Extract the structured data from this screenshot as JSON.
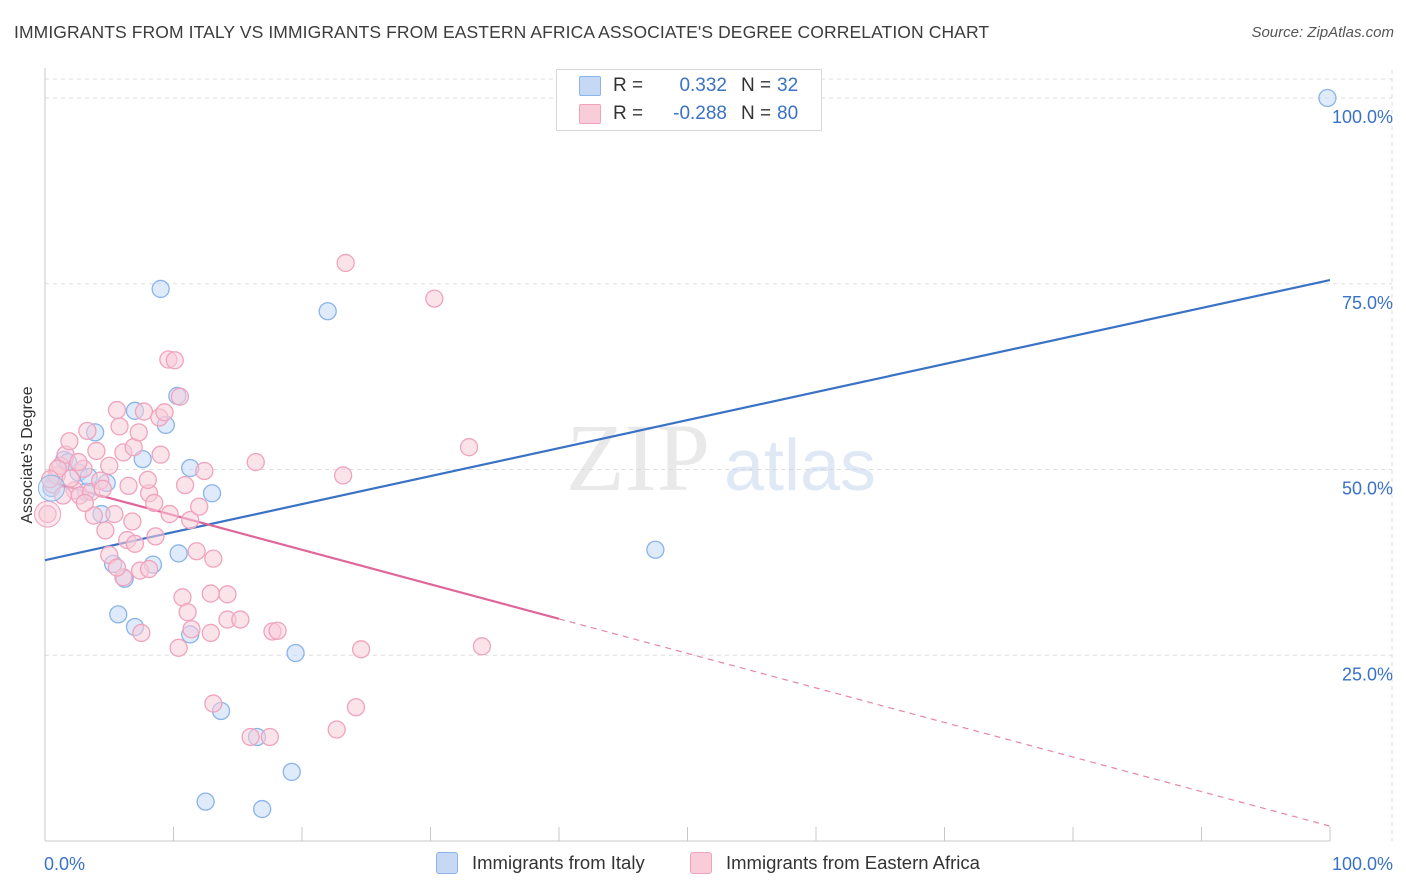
{
  "chart_data": {
    "type": "scatter",
    "title": "IMMIGRANTS FROM ITALY VS IMMIGRANTS FROM EASTERN AFRICA ASSOCIATE'S DEGREE CORRELATION CHART",
    "source": "Source: ZipAtlas.com",
    "ylabel": "Associate's Degree",
    "xlabel": "",
    "xlim": [
      0,
      100
    ],
    "ylim": [
      0,
      100
    ],
    "x_ticks": [
      {
        "value": 0,
        "label": "0.0%"
      },
      {
        "value": 100,
        "label": "100.0%"
      }
    ],
    "y_ticks": [
      {
        "value": 25,
        "label": "25.0%"
      },
      {
        "value": 50,
        "label": "50.0%"
      },
      {
        "value": 75,
        "label": "75.0%"
      },
      {
        "value": 100,
        "label": "100.0%"
      }
    ],
    "grid": true,
    "watermark": {
      "zip": "ZIP",
      "atlas": "atlas"
    },
    "legend_placement": "top-center",
    "series": [
      {
        "name": "Immigrants from Italy",
        "color": "#8ab4ea",
        "fill": "#c5d9f5",
        "line_color": "#3a72c6",
        "r_label": "R =",
        "r_value": "0.332",
        "n_label": "N =",
        "n_value": "32",
        "trend": {
          "x0": 0,
          "y0": 37.8,
          "x1": 100,
          "y1": 75.5,
          "dashed_from": null
        },
        "points": [
          [
            3.9,
            55.0
          ],
          [
            1.5,
            51.3
          ],
          [
            2.6,
            49.6
          ],
          [
            4.8,
            48.2
          ],
          [
            3.2,
            47.0
          ],
          [
            0.5,
            47.5
          ],
          [
            4.4,
            44.0
          ],
          [
            7.0,
            57.9
          ],
          [
            9.4,
            56.0
          ],
          [
            10.3,
            59.9
          ],
          [
            7.6,
            51.4
          ],
          [
            11.3,
            50.2
          ],
          [
            13.0,
            46.8
          ],
          [
            9.0,
            74.3
          ],
          [
            22.0,
            71.3
          ],
          [
            99.8,
            100.0
          ],
          [
            47.5,
            39.2
          ],
          [
            10.4,
            38.7
          ],
          [
            5.3,
            37.3
          ],
          [
            8.4,
            37.2
          ],
          [
            6.2,
            35.3
          ],
          [
            5.7,
            30.5
          ],
          [
            7.0,
            28.8
          ],
          [
            11.3,
            27.8
          ],
          [
            19.5,
            25.3
          ],
          [
            13.7,
            17.5
          ],
          [
            16.5,
            14.0
          ],
          [
            19.2,
            9.3
          ],
          [
            12.5,
            5.3
          ],
          [
            16.9,
            4.3
          ],
          [
            1.8,
            51.0
          ],
          [
            3.4,
            49.0
          ]
        ]
      },
      {
        "name": "Immigrants from Eastern Africa",
        "color": "#f0a3bd",
        "fill": "#f8ccd9",
        "line_color": "#e0669a",
        "r_label": "R =",
        "r_value": "-0.288",
        "n_label": "N =",
        "n_value": "80",
        "trend": {
          "x0": 0,
          "y0": 48.5,
          "x1": 100,
          "y1": 2.0,
          "dashed_from": 40
        },
        "points": [
          [
            0.2,
            44.0
          ],
          [
            0.6,
            48.0
          ],
          [
            0.9,
            49.2
          ],
          [
            1.2,
            50.5
          ],
          [
            1.6,
            52.0
          ],
          [
            1.9,
            53.8
          ],
          [
            2.3,
            47.2
          ],
          [
            2.7,
            46.5
          ],
          [
            3.0,
            50.1
          ],
          [
            3.3,
            55.2
          ],
          [
            3.6,
            47.0
          ],
          [
            4.0,
            52.5
          ],
          [
            4.3,
            48.5
          ],
          [
            4.7,
            41.8
          ],
          [
            5.0,
            50.5
          ],
          [
            5.4,
            44.0
          ],
          [
            5.8,
            55.8
          ],
          [
            6.1,
            52.3
          ],
          [
            6.5,
            47.8
          ],
          [
            6.9,
            53.0
          ],
          [
            7.3,
            55.0
          ],
          [
            7.7,
            57.8
          ],
          [
            8.1,
            46.8
          ],
          [
            8.5,
            45.5
          ],
          [
            8.9,
            57.0
          ],
          [
            9.3,
            57.7
          ],
          [
            9.6,
            64.8
          ],
          [
            10.1,
            64.7
          ],
          [
            10.5,
            59.8
          ],
          [
            10.9,
            47.9
          ],
          [
            11.3,
            43.2
          ],
          [
            8.0,
            48.6
          ],
          [
            5.6,
            58.0
          ],
          [
            12.4,
            49.8
          ],
          [
            16.4,
            51.0
          ],
          [
            23.2,
            49.2
          ],
          [
            23.4,
            77.8
          ],
          [
            30.3,
            73.0
          ],
          [
            33.0,
            53.0
          ],
          [
            5.0,
            38.5
          ],
          [
            6.1,
            35.5
          ],
          [
            7.4,
            36.4
          ],
          [
            5.6,
            36.8
          ],
          [
            8.1,
            36.6
          ],
          [
            10.7,
            32.8
          ],
          [
            11.1,
            30.8
          ],
          [
            13.1,
            38.0
          ],
          [
            12.9,
            33.3
          ],
          [
            14.2,
            33.2
          ],
          [
            14.2,
            29.8
          ],
          [
            12.9,
            28.0
          ],
          [
            15.2,
            29.8
          ],
          [
            17.7,
            28.2
          ],
          [
            18.1,
            28.3
          ],
          [
            7.5,
            28.0
          ],
          [
            10.4,
            26.0
          ],
          [
            11.4,
            28.5
          ],
          [
            24.6,
            25.8
          ],
          [
            34.0,
            26.2
          ],
          [
            13.1,
            18.5
          ],
          [
            24.2,
            18.0
          ],
          [
            22.7,
            15.0
          ],
          [
            17.5,
            14.0
          ],
          [
            16.0,
            14.0
          ],
          [
            2.0,
            48.8
          ],
          [
            3.8,
            43.8
          ],
          [
            6.4,
            40.5
          ],
          [
            1.0,
            50.1
          ],
          [
            0.4,
            48.7
          ],
          [
            9.0,
            52.0
          ],
          [
            2.6,
            51.0
          ],
          [
            4.5,
            47.4
          ],
          [
            7.0,
            40.0
          ],
          [
            1.4,
            46.5
          ],
          [
            3.1,
            45.5
          ],
          [
            6.8,
            43.0
          ],
          [
            9.7,
            44.0
          ],
          [
            12.0,
            45.0
          ],
          [
            8.6,
            41.0
          ],
          [
            11.8,
            39.0
          ]
        ]
      }
    ]
  }
}
